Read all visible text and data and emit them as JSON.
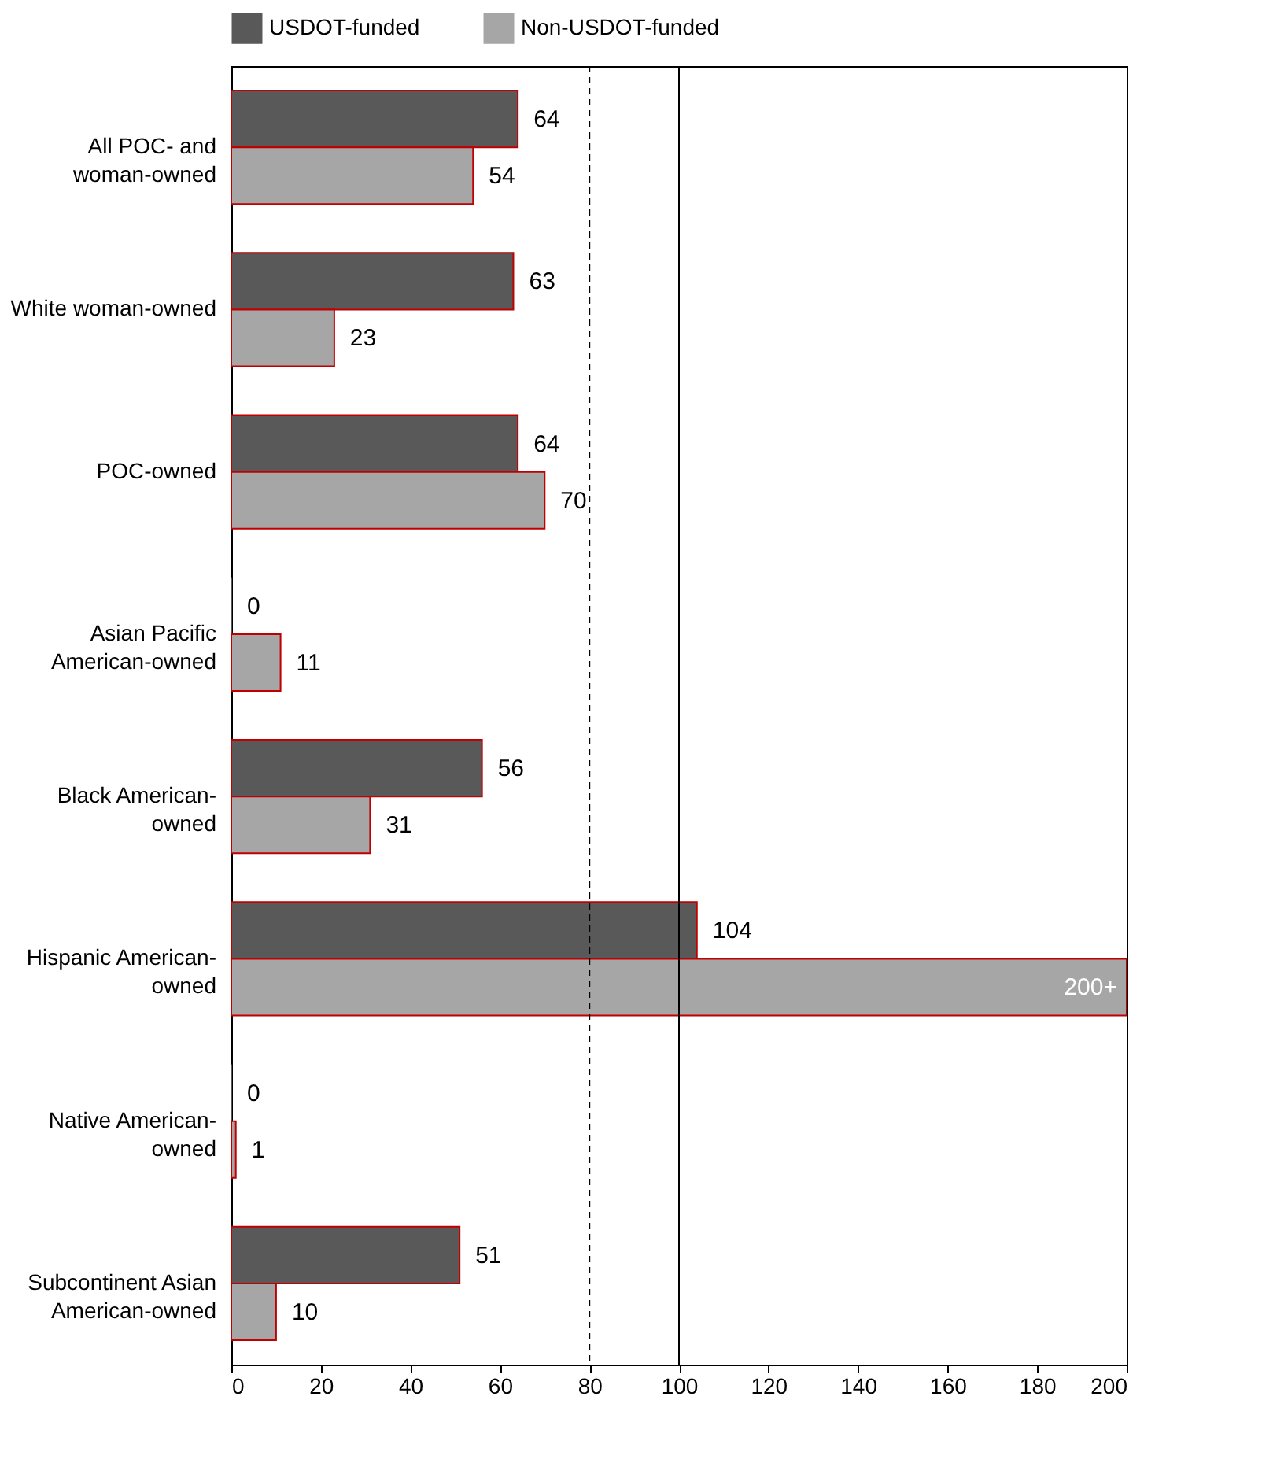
{
  "chart_data": {
    "type": "bar",
    "orientation": "horizontal",
    "categories": [
      "All POC- and woman-owned",
      "White woman-owned",
      "POC-owned",
      "Asian Pacific American-owned",
      "Black American-owned",
      "Hispanic American-owned",
      "Native American-owned",
      "Subcontinent Asian American-owned"
    ],
    "series": [
      {
        "name": "USDOT-funded",
        "color": "#595959",
        "values": [
          64,
          63,
          64,
          0,
          56,
          104,
          0,
          51
        ],
        "value_labels": [
          "64",
          "63",
          "64",
          "0",
          "56",
          "104",
          "0",
          "51"
        ]
      },
      {
        "name": "Non-USDOT-funded",
        "color": "#a6a6a6",
        "values": [
          54,
          23,
          70,
          11,
          31,
          200,
          1,
          10
        ],
        "value_labels": [
          "54",
          "23",
          "70",
          "11",
          "31",
          "200+",
          "1",
          "10"
        ]
      }
    ],
    "xlim": [
      0,
      200
    ],
    "xticks": [
      0,
      20,
      40,
      60,
      80,
      100,
      120,
      140,
      160,
      180,
      200
    ],
    "grid": false,
    "legend": "top",
    "ref_lines": [
      {
        "axis": "x",
        "value": 80,
        "line_style": "dashed"
      },
      {
        "axis": "x",
        "value": 100,
        "line_style": "solid"
      }
    ]
  }
}
